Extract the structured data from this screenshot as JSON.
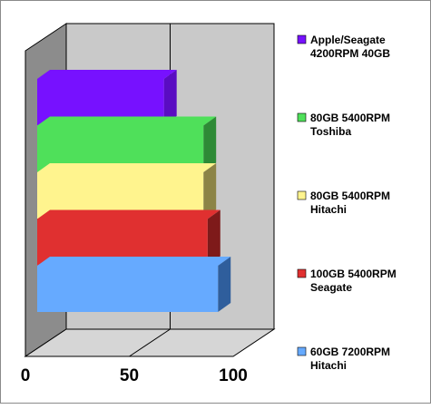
{
  "chart_data": {
    "type": "bar",
    "orientation": "horizontal",
    "three_d": true,
    "title": "",
    "xlabel": "",
    "ylabel": "",
    "xlim": [
      0,
      100
    ],
    "x_ticks": [
      "0",
      "50",
      "100"
    ],
    "grid": true,
    "legend_position": "right",
    "series": [
      {
        "name": "Apple/Seagate 4200RPM 40GB",
        "legend_lines": [
          "Apple/Seagate",
          "4200RPM 40GB"
        ],
        "value": 61,
        "color": "#7711ff",
        "side_color": "#5a0cc2"
      },
      {
        "name": "80GB 5400RPM Toshiba",
        "legend_lines": [
          "80GB 5400RPM",
          "Toshiba"
        ],
        "value": 80,
        "color": "#4fe05a",
        "side_color": "#2e8a36"
      },
      {
        "name": "80GB 5400RPM Hitachi",
        "legend_lines": [
          "80GB 5400RPM",
          "Hitachi"
        ],
        "value": 80,
        "color": "#fff48e",
        "side_color": "#8c8446"
      },
      {
        "name": "100GB 5400RPM Seagate",
        "legend_lines": [
          "100GB 5400RPM",
          "Seagate"
        ],
        "value": 82,
        "color": "#e03030",
        "side_color": "#7e1a1a"
      },
      {
        "name": "60GB 7200RPM Hitachi",
        "legend_lines": [
          "60GB 7200RPM",
          "Hitachi"
        ],
        "value": 87,
        "color": "#66aaff",
        "side_color": "#2f5e9c"
      }
    ]
  }
}
